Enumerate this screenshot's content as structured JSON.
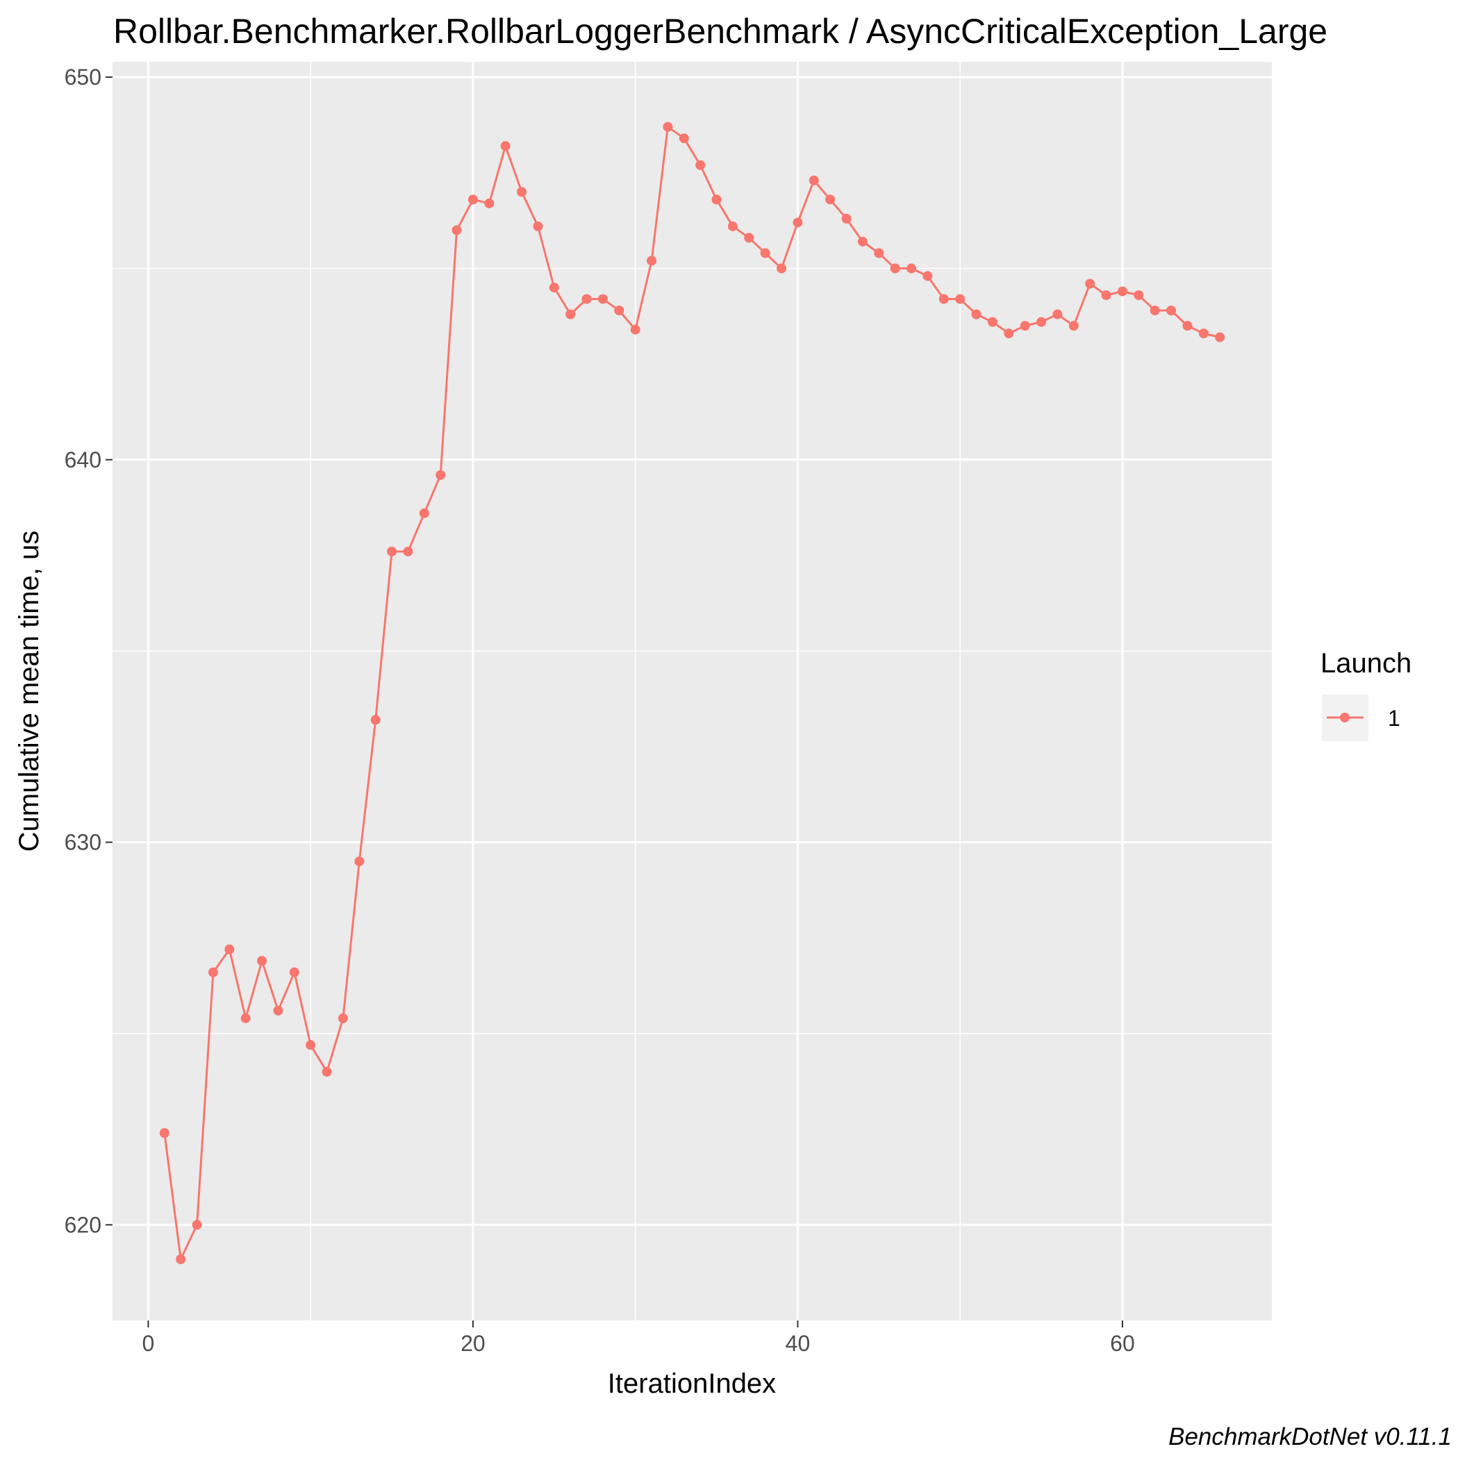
{
  "chart_data": {
    "type": "line",
    "title": "Rollbar.Benchmarker.RollbarLoggerBenchmark / AsyncCriticalException_Large",
    "xlabel": "IterationIndex",
    "ylabel": "Cumulative mean time, us",
    "caption": "BenchmarkDotNet v0.11.1",
    "xlim": [
      -2.2,
      69.2
    ],
    "ylim": [
      617.5,
      650.4
    ],
    "x_ticks": [
      0,
      20,
      40,
      60
    ],
    "x_tick_labels": [
      "0",
      "20",
      "40",
      "60"
    ],
    "y_ticks": [
      620,
      630,
      640,
      650
    ],
    "y_tick_labels": [
      "620",
      "630",
      "640",
      "650"
    ],
    "grid": true,
    "legend": {
      "title": "Launch",
      "position": "right",
      "entries": [
        "1"
      ]
    },
    "colors": {
      "series": "#f8766d",
      "panel": "#ebebeb",
      "grid": "#ffffff",
      "tick": "#333333"
    },
    "series": [
      {
        "name": "1",
        "x": [
          1,
          2,
          3,
          4,
          5,
          6,
          7,
          8,
          9,
          10,
          11,
          12,
          13,
          14,
          15,
          16,
          17,
          18,
          19,
          20,
          21,
          22,
          23,
          24,
          25,
          26,
          27,
          28,
          29,
          30,
          31,
          32,
          33,
          34,
          35,
          36,
          37,
          38,
          39,
          40,
          41,
          42,
          43,
          44,
          45,
          46,
          47,
          48,
          49,
          50,
          51,
          52,
          53,
          54,
          55,
          56,
          57,
          58,
          59,
          60,
          61,
          62,
          63,
          64,
          65,
          66
        ],
        "values": [
          622.4,
          619.1,
          620.0,
          626.6,
          627.2,
          625.4,
          626.9,
          625.6,
          626.6,
          624.7,
          624.0,
          625.4,
          629.5,
          633.2,
          637.6,
          637.6,
          638.6,
          639.6,
          646.0,
          646.8,
          646.7,
          648.2,
          647.0,
          646.1,
          644.5,
          643.8,
          644.2,
          644.2,
          643.9,
          643.4,
          645.2,
          648.7,
          648.4,
          647.7,
          646.8,
          646.1,
          645.8,
          645.4,
          645.0,
          646.2,
          647.3,
          646.8,
          646.3,
          645.7,
          645.4,
          645.0,
          645.0,
          644.8,
          644.2,
          644.2,
          643.8,
          643.6,
          643.3,
          643.5,
          643.6,
          643.8,
          643.5,
          644.6,
          644.3,
          644.4,
          644.3,
          643.9,
          643.9,
          643.5,
          643.3,
          643.2
        ]
      }
    ]
  }
}
